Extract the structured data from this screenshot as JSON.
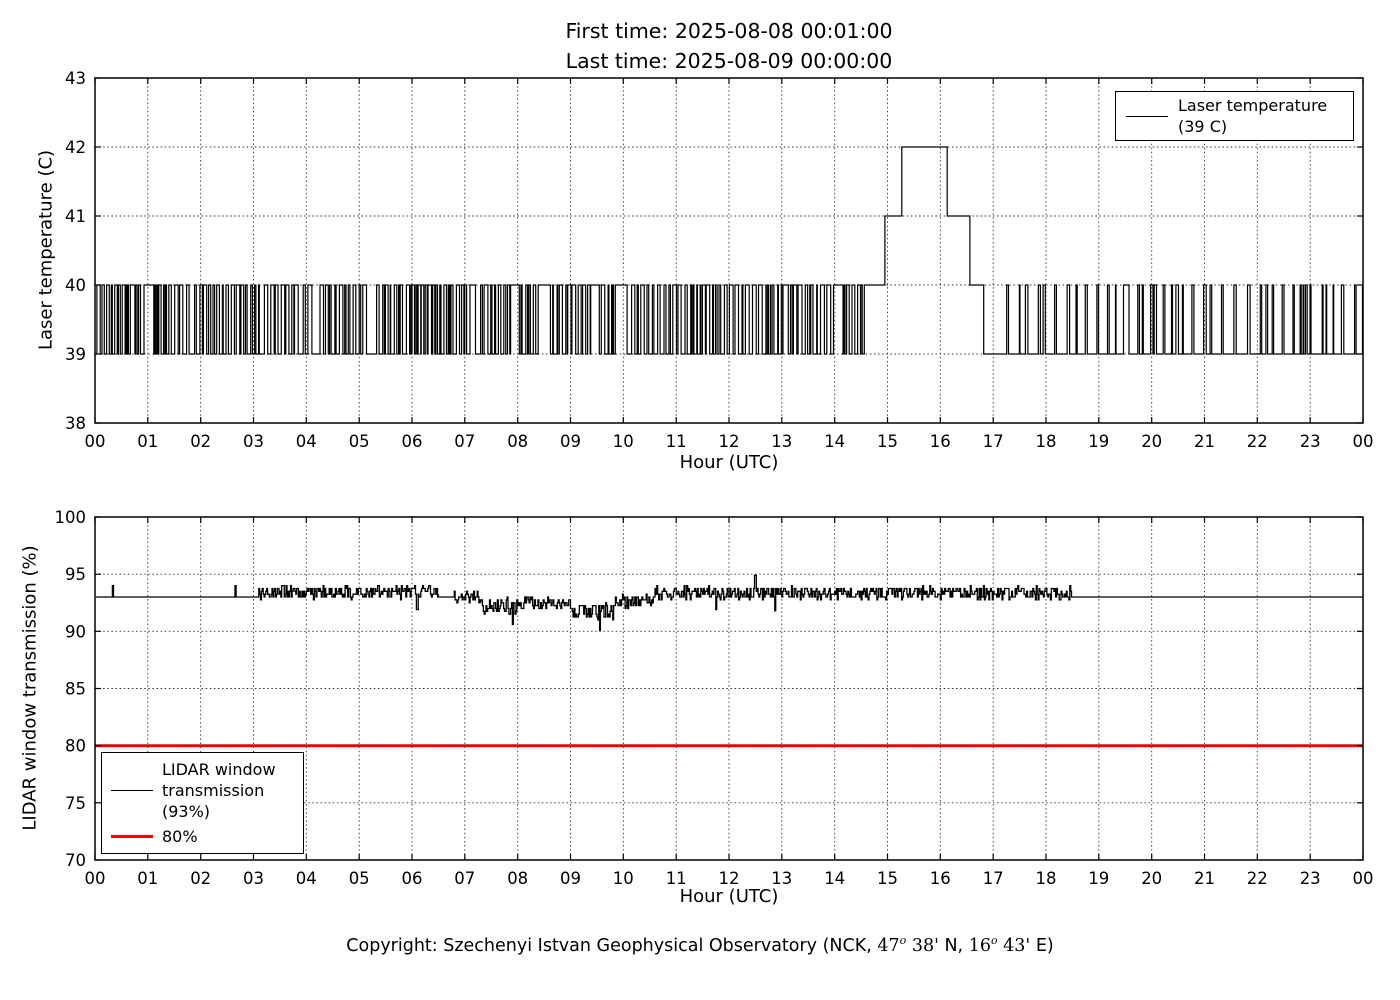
{
  "header": {
    "first_time": "First time: 2025-08-08 00:01:00",
    "last_time": "Last time: 2025-08-09 00:00:00"
  },
  "footer": {
    "main": "Copyright: Szechenyi Istvan Geophysical Observatory (NCK, ",
    "lat_deg": "47",
    "deg_symbol": "o",
    "lat_min": " 38'",
    "lat_dir": " N, ",
    "lon_deg": "16",
    "lon_min": " 43'",
    "lon_dir": " E)"
  },
  "chart_data": [
    {
      "type": "line",
      "title": "",
      "xlabel": "Hour (UTC)",
      "ylabel": "Laser temperature (C)",
      "xlim": [
        0,
        24
      ],
      "ylim": [
        38,
        43
      ],
      "grid": "dotted",
      "xtick_values": [
        0,
        1,
        2,
        3,
        4,
        5,
        6,
        7,
        8,
        9,
        10,
        11,
        12,
        13,
        14,
        15,
        16,
        17,
        18,
        19,
        20,
        21,
        22,
        23,
        24
      ],
      "xtick_labels": [
        "00",
        "01",
        "02",
        "03",
        "04",
        "05",
        "06",
        "07",
        "08",
        "09",
        "10",
        "11",
        "12",
        "13",
        "14",
        "15",
        "16",
        "17",
        "18",
        "19",
        "20",
        "21",
        "22",
        "23",
        "00"
      ],
      "ytick_values": [
        38,
        39,
        40,
        41,
        42,
        43
      ],
      "ytick_labels": [
        "38",
        "39",
        "40",
        "41",
        "42",
        "43"
      ],
      "legend": {
        "position": "upper right",
        "entries": [
          {
            "label_lines": [
              "Laser temperature",
              "(39 C)"
            ],
            "color": "#000000",
            "linewidth": 1.5
          }
        ]
      },
      "series": [
        {
          "name": "Laser temperature (39 C)",
          "color": "#000000",
          "linewidth": 1.2,
          "description": "1-minute laser temperature toggling between 39 and 40 C for most of the day, with a warm excursion peaking at 42 C between 15:00 and 16:10 UTC",
          "segments": [
            {
              "kind": "telegraph",
              "t0": 0.017,
              "t1": 14.59,
              "low": 39,
              "high": 40,
              "start": 39,
              "low_hold": [
                0.006,
                0.075
              ],
              "high_hold": [
                0.006,
                0.075
              ],
              "p_long": 0.05
            },
            {
              "kind": "const",
              "t0": 14.59,
              "t1": 14.95,
              "value": 40
            },
            {
              "kind": "const",
              "t0": 14.95,
              "t1": 15.27,
              "value": 41
            },
            {
              "kind": "const",
              "t0": 15.27,
              "t1": 16.13,
              "value": 42
            },
            {
              "kind": "const",
              "t0": 16.13,
              "t1": 16.56,
              "value": 41
            },
            {
              "kind": "const",
              "t0": 16.56,
              "t1": 16.82,
              "value": 40
            },
            {
              "kind": "const",
              "t0": 16.82,
              "t1": 17.18,
              "value": 39
            },
            {
              "kind": "telegraph",
              "t0": 17.18,
              "t1": 24,
              "low": 39,
              "high": 40,
              "start": 39,
              "low_hold": [
                0.02,
                0.22
              ],
              "high_hold": [
                0.01,
                0.05
              ],
              "p_long": 0.04
            }
          ]
        }
      ]
    },
    {
      "type": "line",
      "title": "",
      "xlabel": "Hour (UTC)",
      "ylabel": "LIDAR window transmission (%)",
      "xlim": [
        0,
        24
      ],
      "ylim": [
        70,
        100
      ],
      "grid": "dotted",
      "xtick_values": [
        0,
        1,
        2,
        3,
        4,
        5,
        6,
        7,
        8,
        9,
        10,
        11,
        12,
        13,
        14,
        15,
        16,
        17,
        18,
        19,
        20,
        21,
        22,
        23,
        24
      ],
      "xtick_labels": [
        "00",
        "01",
        "02",
        "03",
        "04",
        "05",
        "06",
        "07",
        "08",
        "09",
        "10",
        "11",
        "12",
        "13",
        "14",
        "15",
        "16",
        "17",
        "18",
        "19",
        "20",
        "21",
        "22",
        "23",
        "00"
      ],
      "ytick_values": [
        70,
        75,
        80,
        85,
        90,
        95,
        100
      ],
      "ytick_labels": [
        "70",
        "75",
        "80",
        "85",
        "90",
        "95",
        "100"
      ],
      "legend": {
        "position": "lower left",
        "entries": [
          {
            "label_lines": [
              "LIDAR window",
              "transmission",
              "(93%)"
            ],
            "color": "#000000",
            "linewidth": 1.5
          },
          {
            "label_lines": [
              "80%"
            ],
            "color": "#ff0000",
            "linewidth": 3
          }
        ]
      },
      "series": [
        {
          "name": "LIDAR window transmission (93%)",
          "color": "#000000",
          "linewidth": 1.3,
          "description": "Transmission flat at 93% overnight, noisy 91-95% between ~03:10 and ~18:30 UTC with dips toward 90% around 08:00-10:00, flat 93% after 18:30",
          "segments": [
            {
              "kind": "const",
              "t0": 0.017,
              "t1": 3.1,
              "value": 93
            },
            {
              "kind": "noise",
              "t0": 3.1,
              "t1": 6.5,
              "base": 93.4,
              "amp": 0.55
            },
            {
              "kind": "const",
              "t0": 6.5,
              "t1": 6.8,
              "value": 93
            },
            {
              "kind": "noise",
              "t0": 6.8,
              "t1": 7.3,
              "base": 93.0,
              "amp": 0.5
            },
            {
              "kind": "noise",
              "t0": 7.3,
              "t1": 8.1,
              "base": 92.2,
              "amp": 0.7
            },
            {
              "kind": "noise",
              "t0": 8.1,
              "t1": 9.0,
              "base": 92.5,
              "amp": 0.6
            },
            {
              "kind": "noise",
              "t0": 9.0,
              "t1": 9.85,
              "base": 91.7,
              "amp": 0.7
            },
            {
              "kind": "noise",
              "t0": 9.85,
              "t1": 10.6,
              "base": 92.6,
              "amp": 0.6
            },
            {
              "kind": "noise",
              "t0": 10.6,
              "t1": 18.5,
              "base": 93.35,
              "amp": 0.55
            },
            {
              "kind": "const",
              "t0": 18.5,
              "t1": 24,
              "value": 93
            }
          ],
          "spikes": [
            {
              "t": 0.33,
              "v": 94.0
            },
            {
              "t": 2.65,
              "v": 94.0
            },
            {
              "t": 6.09,
              "v": 91.9
            },
            {
              "t": 7.9,
              "v": 90.6
            },
            {
              "t": 9.55,
              "v": 90.1
            },
            {
              "t": 11.75,
              "v": 91.9
            },
            {
              "t": 12.49,
              "v": 94.9
            },
            {
              "t": 12.87,
              "v": 91.8
            }
          ]
        },
        {
          "name": "80%",
          "kind": "hline",
          "value": 80,
          "color": "#ff0000",
          "linewidth": 3
        }
      ]
    }
  ]
}
